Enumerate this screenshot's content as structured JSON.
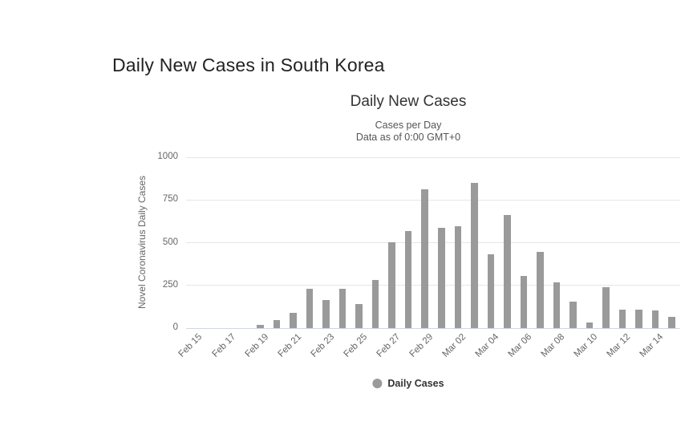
{
  "page": {
    "title": "Daily New Cases in South Korea"
  },
  "chart_data": {
    "type": "bar",
    "title": "Daily New Cases",
    "subtitle_lines": [
      "Cases per Day",
      "Data as of 0:00 GMT+0"
    ],
    "ylabel": "Novel Coronavirus Daily Cases",
    "xlabel": "",
    "legend": {
      "label": "Daily Cases",
      "position": "bottom-center",
      "marker": "circle"
    },
    "categories": [
      "Feb 15",
      "Feb 16",
      "Feb 17",
      "Feb 18",
      "Feb 19",
      "Feb 20",
      "Feb 21",
      "Feb 22",
      "Feb 23",
      "Feb 24",
      "Feb 25",
      "Feb 26",
      "Feb 27",
      "Feb 28",
      "Feb 29",
      "Mar 01",
      "Mar 02",
      "Mar 03",
      "Mar 04",
      "Mar 05",
      "Mar 06",
      "Mar 07",
      "Mar 08",
      "Mar 09",
      "Mar 10",
      "Mar 11",
      "Mar 12",
      "Mar 13",
      "Mar 14",
      "Mar 15"
    ],
    "values": [
      0,
      0,
      0,
      0,
      20,
      45,
      91,
      228,
      165,
      229,
      141,
      284,
      504,
      570,
      814,
      586,
      597,
      852,
      433,
      661,
      306,
      444,
      266,
      156,
      31,
      240,
      110,
      110,
      101,
      67
    ],
    "ylim": [
      0,
      1000
    ],
    "yticks": [
      0,
      250,
      500,
      750,
      1000
    ],
    "xtick_labels_shown": [
      "Feb 15",
      "Feb 17",
      "Feb 19",
      "Feb 21",
      "Feb 23",
      "Feb 25",
      "Feb 27",
      "Feb 29",
      "Mar 02",
      "Mar 04",
      "Mar 06",
      "Mar 08",
      "Mar 10",
      "Mar 12",
      "Mar 14"
    ],
    "xtick_step": 2,
    "grid": "horizontal",
    "colors": {
      "bar": "#9a9a9a",
      "grid_line": "#e6e6e6",
      "axis_line": "#ccd6eb",
      "title_text": "#333333",
      "subtitle_text": "#555555",
      "axis_label_text": "#666666",
      "legend_text": "#333333",
      "page_title_text": "#222222",
      "background": "#ffffff"
    }
  }
}
